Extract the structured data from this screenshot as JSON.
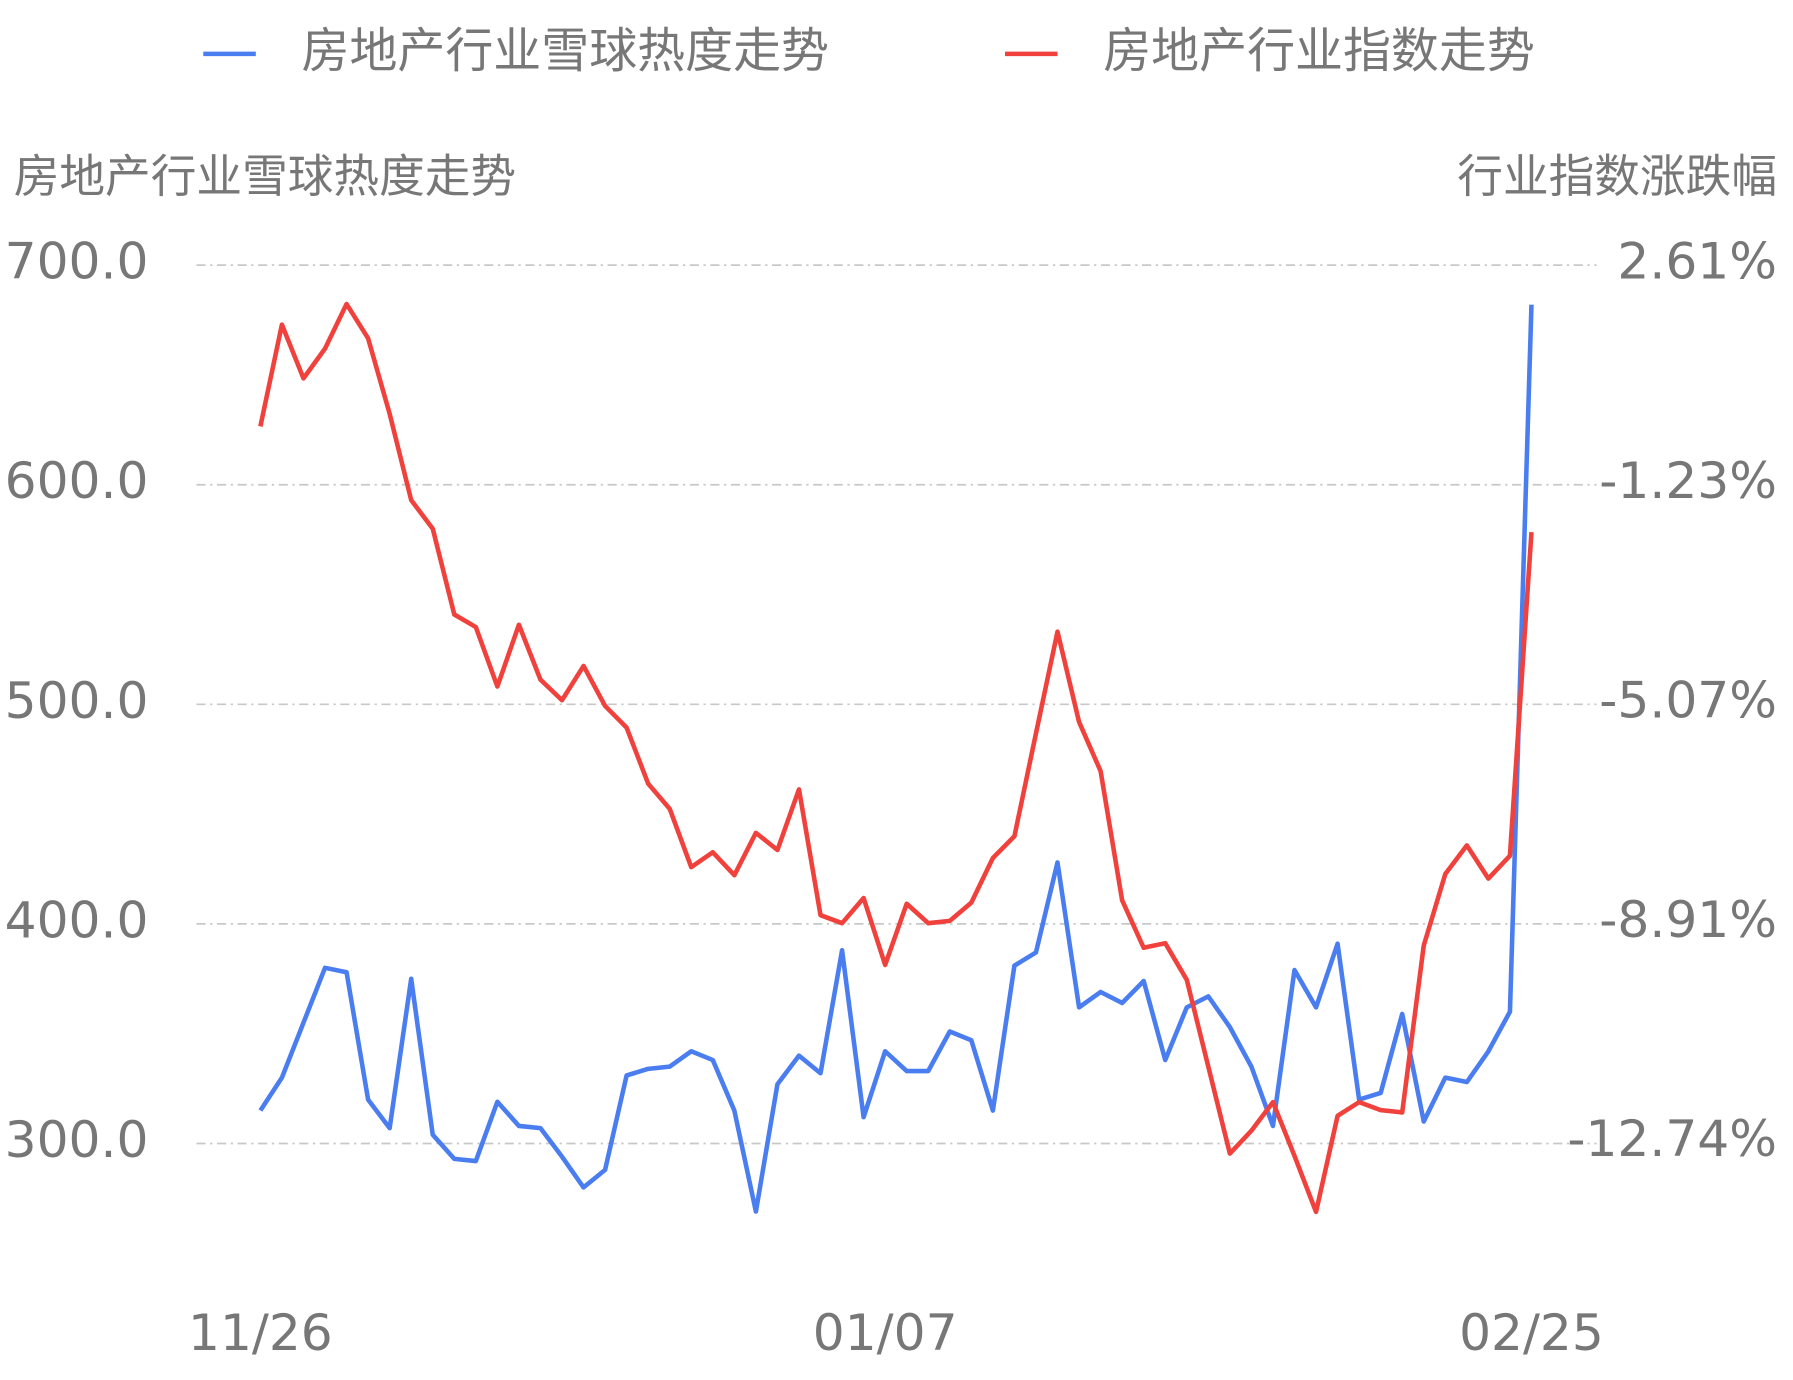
{
  "chart_data": {
    "type": "line",
    "y_title": "房地产行业雪球热度走势",
    "y2_title": "行业指数涨跌幅",
    "categories": [
      "11/26",
      null,
      null,
      null,
      null,
      null,
      null,
      null,
      null,
      null,
      null,
      null,
      null,
      null,
      null,
      null,
      null,
      null,
      null,
      null,
      null,
      null,
      null,
      null,
      null,
      null,
      null,
      null,
      null,
      "01/07",
      null,
      null,
      null,
      null,
      null,
      null,
      null,
      null,
      null,
      null,
      null,
      null,
      null,
      null,
      null,
      null,
      null,
      null,
      null,
      null,
      null,
      null,
      null,
      null,
      null,
      null,
      null,
      null,
      null,
      "02/25"
    ],
    "series": [
      {
        "name": "房地产行业雪球热度走势",
        "color": "#4a7ef0",
        "values": [
          315,
          330,
          355,
          380,
          378,
          320,
          307,
          375,
          304,
          293,
          292,
          319,
          308,
          307,
          294,
          280,
          288,
          331,
          334,
          335,
          342,
          338,
          315,
          269,
          327,
          340,
          332,
          388,
          312,
          342,
          333,
          333,
          351,
          347,
          315,
          381,
          387,
          428,
          362,
          369,
          364,
          374,
          338,
          362,
          367,
          353,
          335,
          308,
          379,
          362,
          391,
          320,
          323,
          359,
          310,
          330,
          328,
          342,
          360,
          682
        ]
      },
      {
        "name": "房地产行业指数走势",
        "color": "#f0413c",
        "axis": "y2",
        "values": [
          -0.21,
          1.57,
          0.63,
          1.15,
          1.93,
          1.33,
          0.01,
          -1.5,
          -2.0,
          -3.5,
          -3.72,
          -4.76,
          -3.68,
          -4.64,
          -5.0,
          -4.4,
          -5.1,
          -5.48,
          -6.46,
          -6.9,
          -7.92,
          -7.66,
          -8.06,
          -7.32,
          -7.62,
          -6.56,
          -8.76,
          -8.9,
          -8.46,
          -9.63,
          -8.56,
          -8.9,
          -8.86,
          -8.54,
          -7.76,
          -7.38,
          -5.58,
          -3.8,
          -5.38,
          -6.24,
          -8.5,
          -9.33,
          -9.25,
          -9.89,
          -11.41,
          -12.93,
          -12.53,
          -12.03,
          -12.97,
          -13.95,
          -12.27,
          -12.03,
          -12.17,
          -12.21,
          -9.29,
          -8.04,
          -7.54,
          -8.12,
          -7.72,
          -2.06
        ]
      }
    ],
    "ylim": [
      260,
      700
    ],
    "yticks": [
      {
        "value": 300,
        "label": "300.0"
      },
      {
        "value": 400,
        "label": "400.0"
      },
      {
        "value": 500,
        "label": "500.0"
      },
      {
        "value": 600,
        "label": "600.0"
      },
      {
        "value": 700,
        "label": "700.0"
      }
    ],
    "y2lim": [
      -14.29,
      2.61
    ],
    "y2ticks": [
      {
        "value": -12.74,
        "label": "-12.74%"
      },
      {
        "value": -8.91,
        "label": "-8.91%"
      },
      {
        "value": -5.07,
        "label": "-5.07%"
      },
      {
        "value": -1.23,
        "label": "-1.23%"
      },
      {
        "value": 2.61,
        "label": "2.61%"
      }
    ],
    "grid": true
  }
}
